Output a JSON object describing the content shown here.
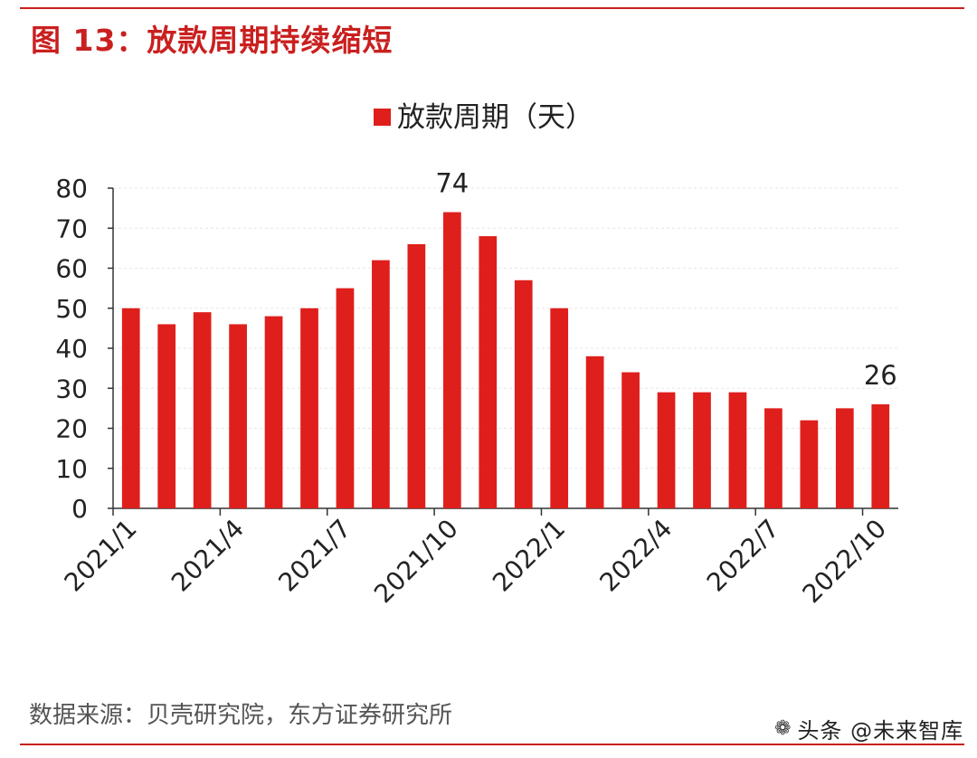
{
  "figure": {
    "title": "图 13：放款周期持续缩短",
    "source": "数据来源：贝壳研究院，东方证券研究所",
    "watermark": "头条 @未来智库",
    "watermark_icon": "wechat-logo-icon",
    "accent_color": "#c9201f",
    "bar_color": "#df1f1c"
  },
  "chart_data": {
    "type": "bar",
    "title": "",
    "legend": [
      "放款周期（天）"
    ],
    "legend_position": "top-center",
    "xlabel": "",
    "ylabel": "",
    "ylim": [
      0,
      80
    ],
    "yticks": [
      0,
      10,
      20,
      30,
      40,
      50,
      60,
      70,
      80
    ],
    "grid": true,
    "categories": [
      "2021/1",
      "2021/2",
      "2021/3",
      "2021/4",
      "2021/5",
      "2021/6",
      "2021/7",
      "2021/8",
      "2021/9",
      "2021/10",
      "2021/11",
      "2021/12",
      "2022/1",
      "2022/2",
      "2022/3",
      "2022/4",
      "2022/5",
      "2022/6",
      "2022/7",
      "2022/8",
      "2022/9",
      "2022/10"
    ],
    "xtick_labels": [
      "2021/1",
      "2021/4",
      "2021/7",
      "2021/10",
      "2022/1",
      "2022/4",
      "2022/7",
      "2022/10"
    ],
    "series": [
      {
        "name": "放款周期（天）",
        "values": [
          50,
          46,
          49,
          46,
          48,
          50,
          55,
          62,
          66,
          74,
          68,
          57,
          50,
          38,
          34,
          29,
          29,
          29,
          25,
          22,
          25,
          26
        ]
      }
    ],
    "annotations": [
      {
        "category": "2021/10",
        "text": "74"
      },
      {
        "category": "2022/10",
        "text": "26"
      }
    ]
  }
}
